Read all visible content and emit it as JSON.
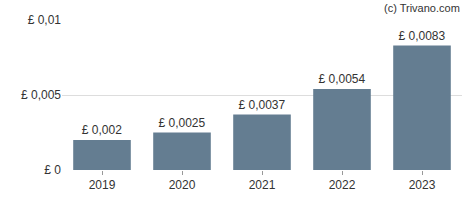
{
  "chart_data": {
    "type": "bar",
    "annotations": [
      "(c) Trivano.com"
    ],
    "categories": [
      "2019",
      "2020",
      "2021",
      "2022",
      "2023"
    ],
    "values": [
      0.002,
      0.0025,
      0.0037,
      0.0054,
      0.0083
    ],
    "value_labels": [
      "£ 0,002",
      "£ 0,0025",
      "£ 0,0037",
      "£ 0,0054",
      "£ 0,0083"
    ],
    "data_labels": true,
    "color": "#647d91",
    "ylim": [
      0,
      0.01
    ],
    "yticks": [
      {
        "value": 0,
        "label": "£ 0"
      },
      {
        "value": 0.005,
        "label": "£ 0,005"
      },
      {
        "value": 0.01,
        "label": "£ 0,01"
      }
    ],
    "grid": true
  }
}
